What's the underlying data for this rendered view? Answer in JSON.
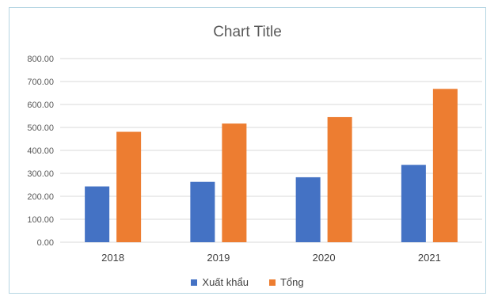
{
  "chart_data": {
    "type": "bar",
    "title": "Chart Title",
    "xlabel": "",
    "ylabel": "",
    "categories": [
      "2018",
      "2019",
      "2020",
      "2021"
    ],
    "series": [
      {
        "name": "Xuất khẩu",
        "values": [
          243,
          263,
          283,
          337
        ],
        "color": "#4472c4"
      },
      {
        "name": "Tổng",
        "values": [
          481,
          517,
          545,
          668
        ],
        "color": "#ed7d31"
      }
    ],
    "ylim": [
      0,
      800
    ],
    "yticks": [
      "0.00",
      "100.00",
      "200.00",
      "300.00",
      "400.00",
      "500.00",
      "600.00",
      "700.00",
      "800.00"
    ],
    "grid": true,
    "legend": "bottom"
  }
}
